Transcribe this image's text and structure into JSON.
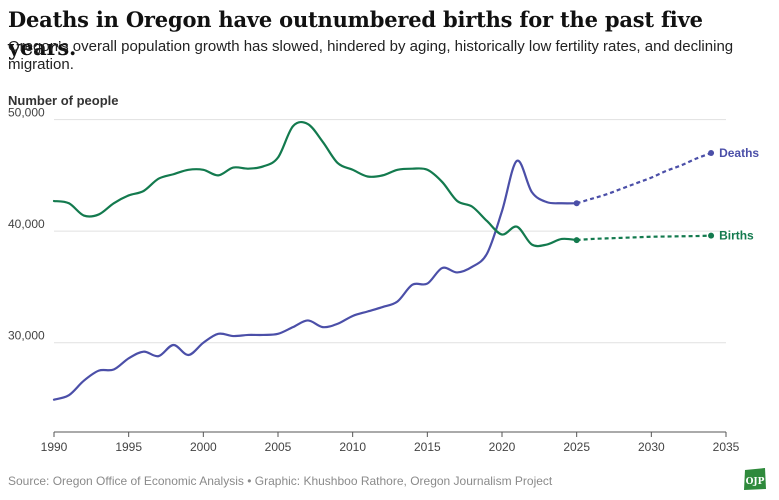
{
  "title": "Deaths in Oregon have outnumbered births for the past five years.",
  "subtitle": "Oregon’s overall population growth has slowed, hindered by aging, historically low fertility rates, and declining migration.",
  "source": "Source: Oregon Office of Economic Analysis • Graphic: Khushboo Rathore, Oregon Journalism Project",
  "logo_text": "OJP",
  "colors": {
    "deaths": "#4b4fa8",
    "births": "#137a4e",
    "grid": "#e1e1e1",
    "axis": "#555555"
  },
  "chart_data": {
    "type": "line",
    "title": "Deaths in Oregon have outnumbered births for the past five years.",
    "xlabel": "",
    "ylabel": "Number of people",
    "xlim": [
      1990,
      2035
    ],
    "ylim": [
      22000,
      50500
    ],
    "x_ticks": [
      1990,
      1995,
      2000,
      2005,
      2010,
      2015,
      2020,
      2025,
      2030,
      2035
    ],
    "y_ticks": [
      {
        "value": 30000,
        "label": "30,000"
      },
      {
        "value": 40000,
        "label": "40,000"
      },
      {
        "value": 50000,
        "label": "50,000"
      }
    ],
    "series": [
      {
        "name": "Deaths",
        "label": "Deaths",
        "color_key": "deaths",
        "x": [
          1990,
          1991,
          1992,
          1993,
          1994,
          1995,
          1996,
          1997,
          1998,
          1999,
          2000,
          2001,
          2002,
          2003,
          2004,
          2005,
          2006,
          2007,
          2008,
          2009,
          2010,
          2011,
          2012,
          2013,
          2014,
          2015,
          2016,
          2017,
          2018,
          2019,
          2020,
          2021,
          2022,
          2023,
          2024,
          2025
        ],
        "values": [
          24900,
          25300,
          26600,
          27500,
          27600,
          28600,
          29200,
          28800,
          29800,
          28900,
          30000,
          30800,
          30600,
          30700,
          30700,
          30800,
          31400,
          32000,
          31400,
          31700,
          32400,
          32800,
          33200,
          33700,
          35200,
          35300,
          36700,
          36300,
          36800,
          38000,
          41800,
          46300,
          43500,
          42600,
          42500,
          42500
        ],
        "projection_x": [
          2025,
          2026,
          2027,
          2028,
          2029,
          2030,
          2031,
          2032,
          2033,
          2034
        ],
        "projection_values": [
          42500,
          42900,
          43300,
          43800,
          44300,
          44800,
          45400,
          45900,
          46500,
          47000
        ]
      },
      {
        "name": "Births",
        "label": "Births",
        "color_key": "births",
        "x": [
          1990,
          1991,
          1992,
          1993,
          1994,
          1995,
          1996,
          1997,
          1998,
          1999,
          2000,
          2001,
          2002,
          2003,
          2004,
          2005,
          2006,
          2007,
          2008,
          2009,
          2010,
          2011,
          2012,
          2013,
          2014,
          2015,
          2016,
          2017,
          2018,
          2019,
          2020,
          2021,
          2022,
          2023,
          2024,
          2025
        ],
        "values": [
          42700,
          42500,
          41400,
          41500,
          42500,
          43200,
          43600,
          44700,
          45100,
          45500,
          45500,
          45000,
          45700,
          45600,
          45800,
          46600,
          49400,
          49600,
          48000,
          46100,
          45500,
          44900,
          45000,
          45500,
          45600,
          45500,
          44400,
          42700,
          42200,
          40900,
          39700,
          40400,
          38800,
          38800,
          39300,
          39200
        ],
        "projection_x": [
          2025,
          2026,
          2027,
          2028,
          2029,
          2030,
          2031,
          2032,
          2033,
          2034
        ],
        "projection_values": [
          39200,
          39300,
          39350,
          39400,
          39450,
          39500,
          39520,
          39540,
          39560,
          39600
        ]
      }
    ]
  }
}
